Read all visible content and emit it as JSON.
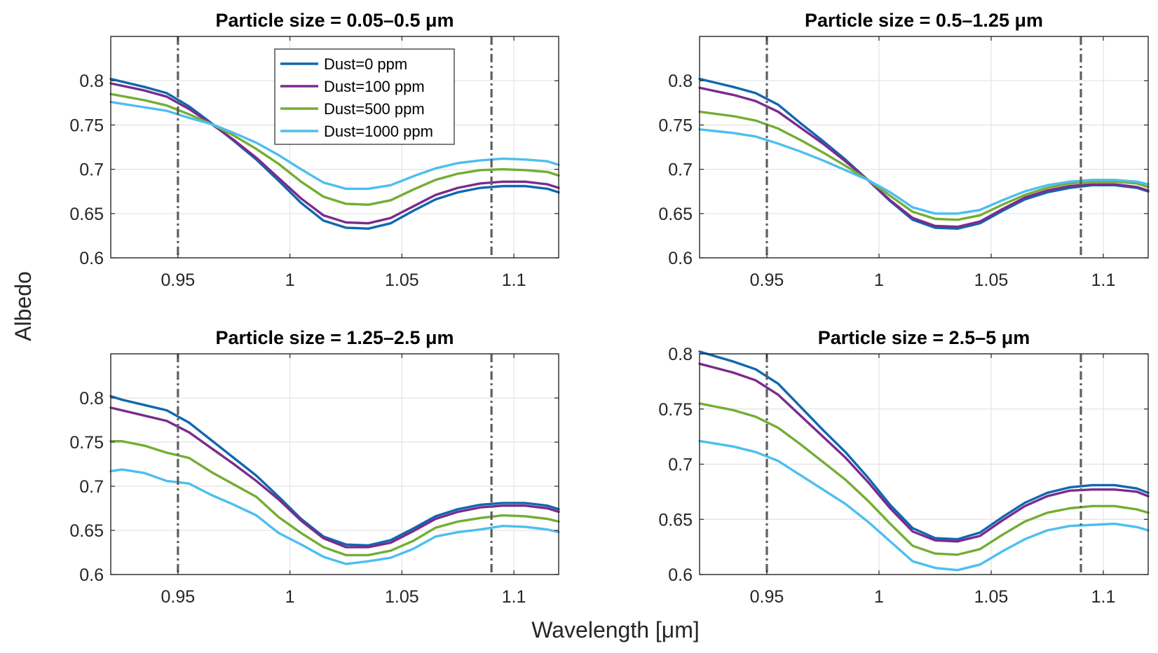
{
  "figure": {
    "ylabel": "Albedo",
    "xlabel": "Wavelength [μm]",
    "xlim": [
      0.92,
      1.12
    ],
    "xticks": [
      0.95,
      1,
      1.05,
      1.1
    ],
    "xtick_labels": [
      "0.95",
      "1",
      "1.05",
      "1.1"
    ],
    "reference_lines_x": [
      0.95,
      1.09
    ]
  },
  "legend": {
    "location": "top, left of center in first panel",
    "entries": [
      "Dust=0 ppm",
      "Dust=100 ppm",
      "Dust=500 ppm",
      "Dust=1000 ppm"
    ]
  },
  "series_colors": {
    "Dust=0 ppm": "#0F68B0",
    "Dust=100 ppm": "#7B2B8D",
    "Dust=500 ppm": "#74AD34",
    "Dust=1000 ppm": "#4DBEEE"
  },
  "chart_data": [
    {
      "type": "line",
      "title": "Particle size = 0.05–0.5 μm",
      "xlabel": "",
      "ylabel": "",
      "ylim": [
        0.6,
        0.85
      ],
      "yticks": [
        0.6,
        0.65,
        0.7,
        0.75,
        0.8
      ],
      "ytick_labels": [
        "0.6",
        "0.65",
        "0.7",
        "0.75",
        "0.8"
      ],
      "x": [
        0.92,
        0.935,
        0.945,
        0.955,
        0.965,
        0.975,
        0.985,
        0.995,
        1.005,
        1.015,
        1.025,
        1.035,
        1.045,
        1.055,
        1.065,
        1.075,
        1.085,
        1.095,
        1.105,
        1.115,
        1.12
      ],
      "series": [
        {
          "name": "Dust=0 ppm",
          "values": [
            0.802,
            0.793,
            0.786,
            0.771,
            0.752,
            0.732,
            0.711,
            0.687,
            0.662,
            0.642,
            0.634,
            0.633,
            0.639,
            0.653,
            0.666,
            0.674,
            0.679,
            0.681,
            0.681,
            0.678,
            0.674
          ]
        },
        {
          "name": "Dust=100 ppm",
          "values": [
            0.797,
            0.789,
            0.782,
            0.768,
            0.751,
            0.733,
            0.713,
            0.69,
            0.667,
            0.648,
            0.64,
            0.639,
            0.645,
            0.658,
            0.671,
            0.679,
            0.684,
            0.686,
            0.686,
            0.683,
            0.679
          ]
        },
        {
          "name": "Dust=500 ppm",
          "values": [
            0.785,
            0.778,
            0.772,
            0.762,
            0.751,
            0.738,
            0.723,
            0.706,
            0.686,
            0.669,
            0.661,
            0.66,
            0.665,
            0.677,
            0.688,
            0.695,
            0.699,
            0.7,
            0.699,
            0.697,
            0.693
          ]
        },
        {
          "name": "Dust=1000 ppm",
          "values": [
            0.776,
            0.77,
            0.766,
            0.758,
            0.751,
            0.741,
            0.73,
            0.716,
            0.7,
            0.685,
            0.678,
            0.678,
            0.682,
            0.692,
            0.701,
            0.707,
            0.71,
            0.712,
            0.711,
            0.709,
            0.705
          ]
        }
      ]
    },
    {
      "type": "line",
      "title": "Particle size = 0.5–1.25 μm",
      "xlabel": "",
      "ylabel": "",
      "ylim": [
        0.6,
        0.85
      ],
      "yticks": [
        0.6,
        0.65,
        0.7,
        0.75,
        0.8
      ],
      "ytick_labels": [
        "0.6",
        "0.65",
        "0.7",
        "0.75",
        "0.8"
      ],
      "x": [
        0.92,
        0.935,
        0.945,
        0.955,
        0.965,
        0.975,
        0.985,
        0.995,
        1.005,
        1.015,
        1.025,
        1.035,
        1.045,
        1.055,
        1.065,
        1.075,
        1.085,
        1.095,
        1.105,
        1.115,
        1.12
      ],
      "series": [
        {
          "name": "Dust=0 ppm",
          "values": [
            0.802,
            0.793,
            0.786,
            0.773,
            0.752,
            0.732,
            0.711,
            0.688,
            0.664,
            0.643,
            0.634,
            0.633,
            0.639,
            0.653,
            0.666,
            0.674,
            0.679,
            0.682,
            0.682,
            0.679,
            0.675
          ]
        },
        {
          "name": "Dust=100 ppm",
          "values": [
            0.792,
            0.784,
            0.777,
            0.765,
            0.747,
            0.729,
            0.709,
            0.688,
            0.665,
            0.645,
            0.636,
            0.635,
            0.641,
            0.655,
            0.668,
            0.676,
            0.681,
            0.683,
            0.683,
            0.68,
            0.676
          ]
        },
        {
          "name": "Dust=500 ppm",
          "values": [
            0.765,
            0.76,
            0.755,
            0.746,
            0.733,
            0.719,
            0.704,
            0.688,
            0.67,
            0.652,
            0.644,
            0.643,
            0.648,
            0.66,
            0.671,
            0.679,
            0.684,
            0.686,
            0.686,
            0.684,
            0.68
          ]
        },
        {
          "name": "Dust=1000 ppm",
          "values": [
            0.745,
            0.741,
            0.737,
            0.729,
            0.72,
            0.71,
            0.699,
            0.688,
            0.674,
            0.657,
            0.65,
            0.65,
            0.654,
            0.665,
            0.675,
            0.682,
            0.686,
            0.688,
            0.688,
            0.686,
            0.683
          ]
        }
      ]
    },
    {
      "type": "line",
      "title": "Particle size = 1.25–2.5 μm",
      "xlabel": "",
      "ylabel": "",
      "ylim": [
        0.6,
        0.85
      ],
      "yticks": [
        0.6,
        0.65,
        0.7,
        0.75,
        0.8
      ],
      "ytick_labels": [
        "0.6",
        "0.65",
        "0.7",
        "0.75",
        "0.8"
      ],
      "x": [
        0.92,
        0.925,
        0.935,
        0.945,
        0.955,
        0.965,
        0.975,
        0.985,
        0.995,
        1.005,
        1.015,
        1.025,
        1.035,
        1.045,
        1.055,
        1.065,
        1.075,
        1.085,
        1.095,
        1.105,
        1.115,
        1.12
      ],
      "series": [
        {
          "name": "Dust=0 ppm",
          "values": [
            0.802,
            0.798,
            0.792,
            0.786,
            0.772,
            0.752,
            0.732,
            0.712,
            0.688,
            0.663,
            0.643,
            0.634,
            0.633,
            0.639,
            0.652,
            0.666,
            0.674,
            0.679,
            0.681,
            0.681,
            0.678,
            0.674
          ]
        },
        {
          "name": "Dust=100 ppm",
          "values": [
            0.789,
            0.786,
            0.78,
            0.774,
            0.761,
            0.743,
            0.725,
            0.706,
            0.685,
            0.661,
            0.641,
            0.631,
            0.631,
            0.636,
            0.649,
            0.663,
            0.671,
            0.676,
            0.678,
            0.678,
            0.675,
            0.671
          ]
        },
        {
          "name": "Dust=500 ppm",
          "values": [
            0.751,
            0.751,
            0.746,
            0.738,
            0.732,
            0.716,
            0.702,
            0.688,
            0.665,
            0.647,
            0.631,
            0.622,
            0.622,
            0.627,
            0.638,
            0.653,
            0.66,
            0.664,
            0.667,
            0.666,
            0.663,
            0.66
          ]
        },
        {
          "name": "Dust=1000 ppm",
          "values": [
            0.717,
            0.719,
            0.715,
            0.706,
            0.703,
            0.69,
            0.679,
            0.667,
            0.647,
            0.634,
            0.62,
            0.612,
            0.615,
            0.619,
            0.629,
            0.643,
            0.648,
            0.651,
            0.655,
            0.654,
            0.651,
            0.648
          ]
        }
      ]
    },
    {
      "type": "line",
      "title": "Particle size = 2.5–5 μm",
      "xlabel": "",
      "ylabel": "",
      "ylim": [
        0.6,
        0.8
      ],
      "yticks": [
        0.6,
        0.65,
        0.7,
        0.75,
        0.8
      ],
      "ytick_labels": [
        "0.6",
        "0.65",
        "0.7",
        "0.75",
        "0.8"
      ],
      "x": [
        0.92,
        0.935,
        0.945,
        0.955,
        0.965,
        0.975,
        0.985,
        0.995,
        1.005,
        1.015,
        1.025,
        1.035,
        1.045,
        1.055,
        1.065,
        1.075,
        1.085,
        1.095,
        1.105,
        1.115,
        1.12
      ],
      "series": [
        {
          "name": "Dust=0 ppm",
          "values": [
            0.802,
            0.793,
            0.786,
            0.773,
            0.752,
            0.731,
            0.711,
            0.688,
            0.663,
            0.642,
            0.633,
            0.632,
            0.638,
            0.652,
            0.665,
            0.674,
            0.679,
            0.681,
            0.681,
            0.678,
            0.674
          ]
        },
        {
          "name": "Dust=100 ppm",
          "values": [
            0.791,
            0.783,
            0.776,
            0.763,
            0.744,
            0.725,
            0.706,
            0.684,
            0.66,
            0.639,
            0.631,
            0.63,
            0.635,
            0.649,
            0.662,
            0.671,
            0.676,
            0.677,
            0.677,
            0.675,
            0.671
          ]
        },
        {
          "name": "Dust=500 ppm",
          "values": [
            0.755,
            0.749,
            0.743,
            0.733,
            0.718,
            0.702,
            0.686,
            0.667,
            0.646,
            0.626,
            0.619,
            0.618,
            0.623,
            0.636,
            0.648,
            0.656,
            0.66,
            0.662,
            0.662,
            0.659,
            0.656
          ]
        },
        {
          "name": "Dust=1000 ppm",
          "values": [
            0.721,
            0.716,
            0.711,
            0.703,
            0.69,
            0.677,
            0.664,
            0.648,
            0.63,
            0.612,
            0.606,
            0.604,
            0.609,
            0.621,
            0.632,
            0.64,
            0.644,
            0.645,
            0.646,
            0.643,
            0.64
          ]
        }
      ]
    }
  ]
}
